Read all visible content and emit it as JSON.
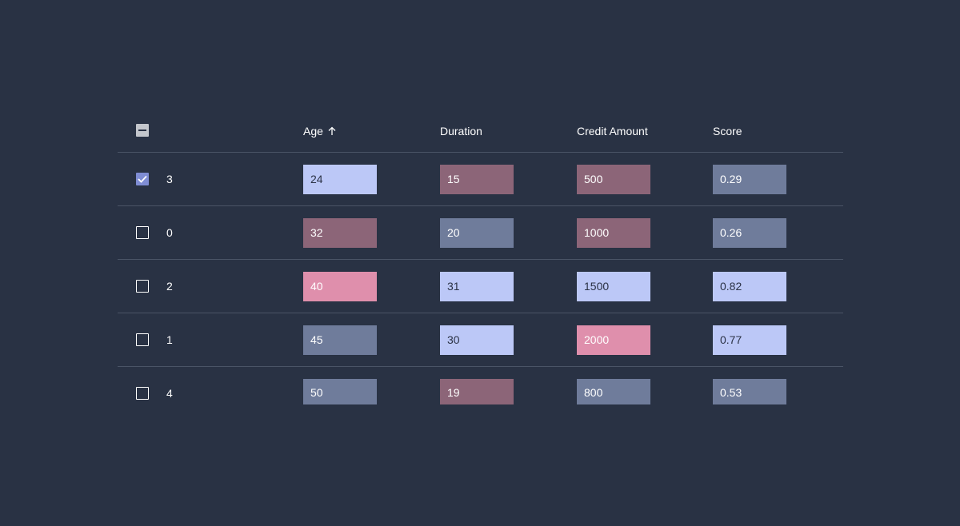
{
  "colors": {
    "background": "#293244",
    "cell_high": "#bcc8f7",
    "cell_mid": "#6f7c9b",
    "cell_dark_pink": "#8c6578",
    "cell_pink": "#df8fac",
    "checkbox_checked": "#7f8dd4",
    "text_on_light": "#2b3245",
    "text_on_dark": "#ffffff"
  },
  "header": {
    "select_all_state": "indeterminate",
    "columns": [
      {
        "label": "Age",
        "sorted": "ascending",
        "sort_icon": "arrow-up-icon"
      },
      {
        "label": "Duration"
      },
      {
        "label": "Credit Amount"
      },
      {
        "label": "Score"
      }
    ]
  },
  "rows": [
    {
      "id": "3",
      "checked": true,
      "cells": [
        {
          "value": "24",
          "color": "#bcc8f7"
        },
        {
          "value": "15",
          "color": "#8c6578"
        },
        {
          "value": "500",
          "color": "#8c6578"
        },
        {
          "value": "0.29",
          "color": "#6f7c9b"
        }
      ]
    },
    {
      "id": "0",
      "checked": false,
      "cells": [
        {
          "value": "32",
          "color": "#8c6578"
        },
        {
          "value": "20",
          "color": "#6f7c9b"
        },
        {
          "value": "1000",
          "color": "#8c6578"
        },
        {
          "value": "0.26",
          "color": "#6f7c9b"
        }
      ]
    },
    {
      "id": "2",
      "checked": false,
      "cells": [
        {
          "value": "40",
          "color": "#df8fac"
        },
        {
          "value": "31",
          "color": "#bcc8f7"
        },
        {
          "value": "1500",
          "color": "#bcc8f7"
        },
        {
          "value": "0.82",
          "color": "#bcc8f7"
        }
      ]
    },
    {
      "id": "1",
      "checked": false,
      "cells": [
        {
          "value": "45",
          "color": "#6f7c9b"
        },
        {
          "value": "30",
          "color": "#bcc8f7"
        },
        {
          "value": "2000",
          "color": "#df8fac"
        },
        {
          "value": "0.77",
          "color": "#bcc8f7"
        }
      ]
    },
    {
      "id": "4",
      "checked": false,
      "cells": [
        {
          "value": "50",
          "color": "#6f7c9b"
        },
        {
          "value": "19",
          "color": "#8c6578"
        },
        {
          "value": "800",
          "color": "#6f7c9b"
        },
        {
          "value": "0.53",
          "color": "#6f7c9b"
        }
      ]
    }
  ]
}
